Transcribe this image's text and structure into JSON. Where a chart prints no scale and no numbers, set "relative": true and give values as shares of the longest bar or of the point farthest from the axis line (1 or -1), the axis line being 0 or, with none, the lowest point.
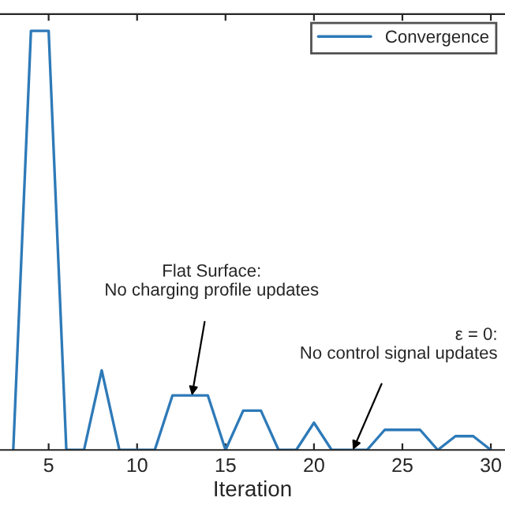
{
  "chart_data": {
    "type": "line",
    "relative": true,
    "xlabel": "Iteration",
    "x": [
      3,
      4,
      5,
      6,
      7,
      8,
      9,
      10,
      11,
      12,
      13,
      14,
      15,
      16,
      17,
      18,
      19,
      20,
      21,
      22,
      23,
      24,
      25,
      26,
      27,
      28,
      29,
      30
    ],
    "series": [
      {
        "name": "Convergence",
        "color": "#2e7ab8",
        "values": [
          0,
          1,
          1,
          0,
          0,
          0.19,
          0,
          0,
          0,
          0.13,
          0.13,
          0.13,
          0,
          0.094,
          0.094,
          0,
          0,
          0.065,
          0,
          0,
          0,
          0.048,
          0.048,
          0.048,
          0,
          0.033,
          0.033,
          0
        ]
      }
    ],
    "xlim": [
      2.25,
      30.8
    ],
    "xticks": [
      5,
      10,
      15,
      20,
      25,
      30
    ],
    "tick_labels": "x",
    "grid": false,
    "legend": "top right",
    "marker": "none",
    "line_style": "solid",
    "annotations": [
      {
        "text": "Flat Surface:\nNo charging profile updates",
        "x": 13.1,
        "y": 0.13
      },
      {
        "text": "ε = 0:\nNo control signal updates",
        "x": 22.2,
        "y": 0
      }
    ]
  }
}
